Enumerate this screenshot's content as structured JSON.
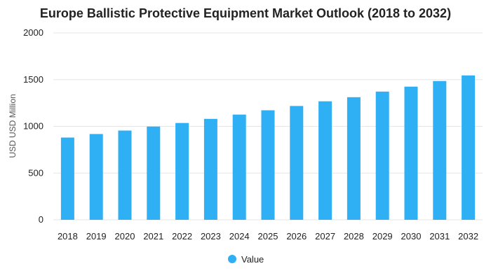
{
  "chart_data": {
    "type": "bar",
    "title": "Europe Ballistic Protective Equipment Market Outlook (2018 to 2032)",
    "xlabel": "",
    "ylabel": "USD USD Million",
    "categories": [
      "2018",
      "2019",
      "2020",
      "2021",
      "2022",
      "2023",
      "2024",
      "2025",
      "2026",
      "2027",
      "2028",
      "2029",
      "2030",
      "2031",
      "2032"
    ],
    "series": [
      {
        "name": "Value",
        "values": [
          880,
          918,
          955,
          998,
          1036,
          1080,
          1126,
          1172,
          1218,
          1268,
          1312,
          1372,
          1425,
          1485,
          1545
        ]
      }
    ],
    "ylim": [
      0,
      2000
    ],
    "yticks": [
      0,
      500,
      1000,
      1500,
      2000
    ],
    "grid": true,
    "legend_position": "bottom-center",
    "colors": {
      "bar": "#2fb0f5",
      "grid": "#e6e6e6",
      "text": "#222222"
    }
  }
}
